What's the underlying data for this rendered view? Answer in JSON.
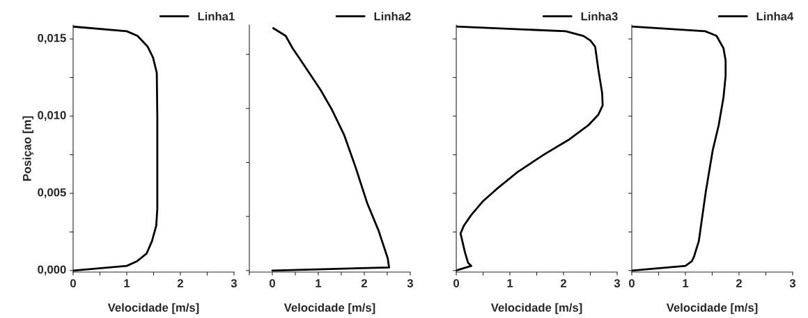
{
  "chart_data": [
    {
      "type": "line",
      "xlabel": "Velocidade [m/s]",
      "ylabel": "Posiçao [m]",
      "legend": "top right",
      "line_style": "solid",
      "tick_labels": true,
      "xlim": [
        0,
        3
      ],
      "xticks": [
        0,
        {
          "value": 0.5,
          "label": null
        },
        1,
        {
          "value": 1.5,
          "label": null
        },
        2,
        {
          "value": 2.5,
          "label": null
        },
        3
      ],
      "ylim": [
        -0.0001,
        0.0159
      ],
      "yticks": [
        {
          "value": 0,
          "label": "0,000"
        },
        {
          "value": 0.0025,
          "label": null
        },
        {
          "value": 0.005,
          "label": "0,005"
        },
        {
          "value": 0.0075,
          "label": null
        },
        {
          "value": 0.01,
          "label": "0,010"
        },
        {
          "value": 0.0125,
          "label": null
        },
        {
          "value": 0.015,
          "label": "0,015"
        }
      ],
      "series": [
        {
          "name": "Linha1",
          "color": "#000000",
          "x": [
            0,
            1.0,
            1.19,
            1.37,
            1.47,
            1.55,
            1.57,
            1.57,
            1.57,
            1.56,
            1.49,
            1.39,
            1.2,
            1.0,
            0
          ],
          "values": [
            0,
            0.0003,
            0.0006,
            0.0011,
            0.0019,
            0.0029,
            0.004,
            0.007,
            0.01,
            0.0128,
            0.0138,
            0.0145,
            0.0152,
            0.0155,
            0.0158
          ]
        }
      ]
    },
    {
      "type": "line",
      "xlabel": "Velocidade [m/s]",
      "legend": "top right",
      "line_style": "solid",
      "tick_labels": "x",
      "xlim": [
        -0.5,
        3
      ],
      "xticks": [
        {
          "value": -0.5,
          "label": null
        },
        0,
        {
          "value": 0.5,
          "label": null
        },
        1,
        {
          "value": 1.5,
          "label": null
        },
        2,
        {
          "value": 2.5,
          "label": null
        },
        3
      ],
      "ylim": [
        -0.0001,
        0.0159
      ],
      "yticks": [
        {
          "value": 0,
          "label": null
        },
        {
          "value": 0.0035,
          "label": null
        },
        {
          "value": 0.007,
          "label": null
        },
        {
          "value": 0.0105,
          "label": null
        },
        {
          "value": 0.014,
          "label": null
        }
      ],
      "series": [
        {
          "name": "Linha2",
          "color": "#000000",
          "x": [
            0,
            2.54,
            2.51,
            2.31,
            2.06,
            1.81,
            1.56,
            1.3,
            1.05,
            0.6,
            0.44,
            0.29,
            0.02
          ],
          "values": [
            0,
            0.0002,
            0.0008,
            0.0026,
            0.0044,
            0.0067,
            0.0088,
            0.0104,
            0.0117,
            0.0137,
            0.0144,
            0.0152,
            0.0157
          ]
        }
      ]
    },
    {
      "type": "line",
      "xlabel": "Velocidade [m/s]",
      "legend": "top right",
      "line_style": "solid",
      "tick_labels": "x",
      "xlim": [
        0,
        3
      ],
      "xticks": [
        0,
        {
          "value": 0.5,
          "label": null
        },
        1,
        {
          "value": 1.5,
          "label": null
        },
        2,
        {
          "value": 2.5,
          "label": null
        },
        3
      ],
      "ylim": [
        -0.0001,
        0.0159
      ],
      "yticks": [
        {
          "value": 0,
          "label": null
        },
        {
          "value": 0.0025,
          "label": null
        },
        {
          "value": 0.005,
          "label": null
        },
        {
          "value": 0.0075,
          "label": null
        },
        {
          "value": 0.01,
          "label": null
        },
        {
          "value": 0.0125,
          "label": null
        },
        {
          "value": 0.015,
          "label": null
        }
      ],
      "series": [
        {
          "name": "Linha3",
          "color": "#000000",
          "x": [
            0,
            0.28,
            0.22,
            0.16,
            0.08,
            0.14,
            0.28,
            0.5,
            0.76,
            1.15,
            1.63,
            2.11,
            2.46,
            2.65,
            2.73,
            2.72,
            2.65,
            2.59,
            2.5,
            2.37,
            2.04,
            0
          ],
          "values": [
            0,
            0.0003,
            0.0005,
            0.0012,
            0.0024,
            0.0029,
            0.0036,
            0.0045,
            0.0053,
            0.0064,
            0.0075,
            0.0085,
            0.0094,
            0.0101,
            0.0107,
            0.0115,
            0.013,
            0.0145,
            0.0149,
            0.0152,
            0.0155,
            0.0158
          ]
        }
      ]
    },
    {
      "type": "line",
      "xlabel": "Velocidade [m/s]",
      "legend": "top right",
      "line_style": "solid",
      "tick_labels": "x",
      "xlim": [
        0,
        3
      ],
      "xticks": [
        0,
        {
          "value": 0.5,
          "label": null
        },
        1,
        {
          "value": 1.5,
          "label": null
        },
        2,
        {
          "value": 2.5,
          "label": null
        },
        3
      ],
      "ylim": [
        -0.0001,
        0.0159
      ],
      "yticks": [
        {
          "value": 0,
          "label": null
        },
        {
          "value": 0.0025,
          "label": null
        },
        {
          "value": 0.005,
          "label": null
        },
        {
          "value": 0.0075,
          "label": null
        },
        {
          "value": 0.01,
          "label": null
        },
        {
          "value": 0.0125,
          "label": null
        },
        {
          "value": 0.015,
          "label": null
        }
      ],
      "series": [
        {
          "name": "Linha4",
          "color": "#000000",
          "x": [
            0,
            1.0,
            1.12,
            1.16,
            1.25,
            1.38,
            1.51,
            1.62,
            1.71,
            1.75,
            1.75,
            1.71,
            1.58,
            1.37,
            0
          ],
          "values": [
            0,
            0.0003,
            0.0006,
            0.0009,
            0.0019,
            0.0051,
            0.0078,
            0.0094,
            0.0112,
            0.0126,
            0.0136,
            0.0144,
            0.0152,
            0.0155,
            0.0158
          ]
        }
      ]
    }
  ]
}
